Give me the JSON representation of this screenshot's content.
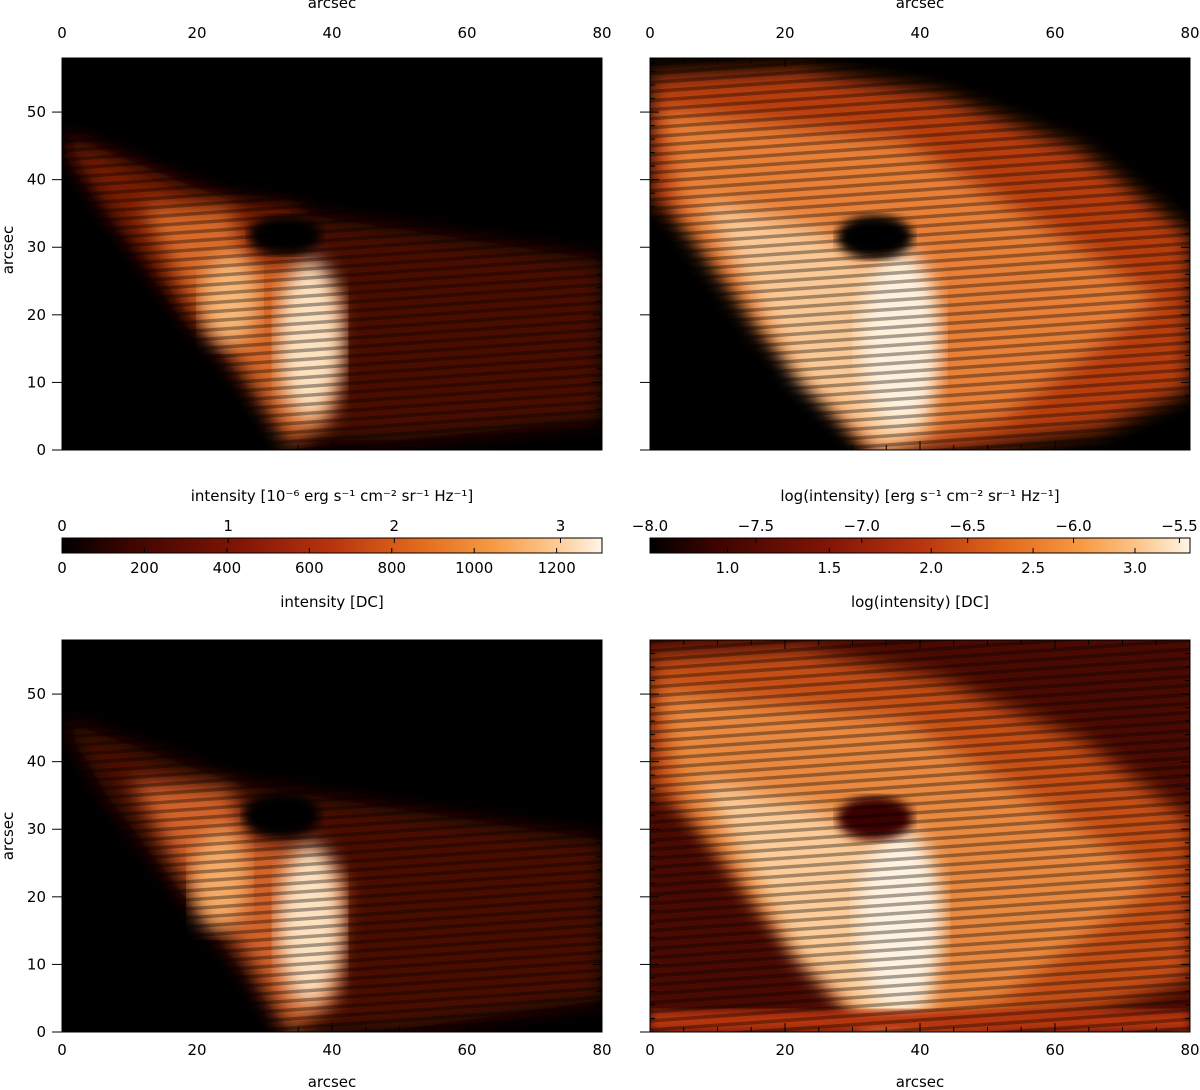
{
  "chart_data": [
    {
      "type": "heatmap",
      "panel": "top-left",
      "xlabel_top": "arcsec",
      "ylabel": "arcsec",
      "xlim": [
        0,
        80
      ],
      "ylim": [
        0,
        58
      ],
      "xticks": [
        0,
        20,
        40,
        60,
        80
      ],
      "yticks": [
        0,
        10,
        20,
        30,
        40,
        50
      ],
      "xtick_side": "top",
      "scale": "linear",
      "colormap": "hot-orange",
      "features": {
        "apex": [
          34,
          0
        ],
        "peak": [
          37,
          18
        ],
        "dark_spot": [
          32,
          31
        ]
      }
    },
    {
      "type": "heatmap",
      "panel": "top-right",
      "xlabel_top": "arcsec",
      "xlim": [
        0,
        80
      ],
      "ylim": [
        0,
        58
      ],
      "xticks": [
        0,
        20,
        40,
        60,
        80
      ],
      "xtick_side": "top",
      "scale": "log",
      "colormap": "hot-orange",
      "features": {
        "apex": [
          34,
          0
        ],
        "peak": [
          36,
          18
        ],
        "dark_spot": [
          32,
          31
        ]
      }
    },
    {
      "type": "heatmap",
      "panel": "bottom-left",
      "xlabel": "arcsec",
      "ylabel": "arcsec",
      "xlim": [
        0,
        80
      ],
      "ylim": [
        0,
        58
      ],
      "xticks": [
        0,
        20,
        40,
        60,
        80
      ],
      "yticks": [
        0,
        10,
        20,
        30,
        40,
        50
      ],
      "scale": "linear",
      "colormap": "hot-orange"
    },
    {
      "type": "heatmap",
      "panel": "bottom-right",
      "xlabel": "arcsec",
      "xlim": [
        0,
        80
      ],
      "ylim": [
        0,
        58
      ],
      "xticks": [
        0,
        20,
        40,
        60,
        80
      ],
      "scale": "log",
      "colormap": "hot-orange"
    }
  ],
  "colorbars": [
    {
      "title_top": "intensity [10⁻⁶ erg s⁻¹ cm⁻² sr⁻¹ Hz⁻¹]",
      "top_ticks": [
        "0",
        "1",
        "2",
        "3"
      ],
      "top_range": [
        0,
        3.25
      ],
      "bottom_ticks": [
        "0",
        "200",
        "400",
        "600",
        "800",
        "1000",
        "1200"
      ],
      "bottom_range": [
        0,
        1310
      ],
      "title_bottom": "intensity [DC]"
    },
    {
      "title_top": "log(intensity) [erg s⁻¹ cm⁻² sr⁻¹ Hz⁻¹]",
      "top_ticks": [
        "−8.0",
        "−7.5",
        "−7.0",
        "−6.5",
        "−6.0",
        "−5.5"
      ],
      "top_range": [
        -8.0,
        -5.45
      ],
      "bottom_ticks": [
        "1.0",
        "1.5",
        "2.0",
        "2.5",
        "3.0"
      ],
      "bottom_range": [
        0.62,
        3.27
      ],
      "title_bottom": "log(intensity) [DC]"
    }
  ],
  "colors": {
    "colormap_stops": [
      "#000000",
      "#3c0400",
      "#7e1405",
      "#b8340f",
      "#e26a1c",
      "#f79a45",
      "#fcc88f",
      "#fff5e6"
    ]
  }
}
